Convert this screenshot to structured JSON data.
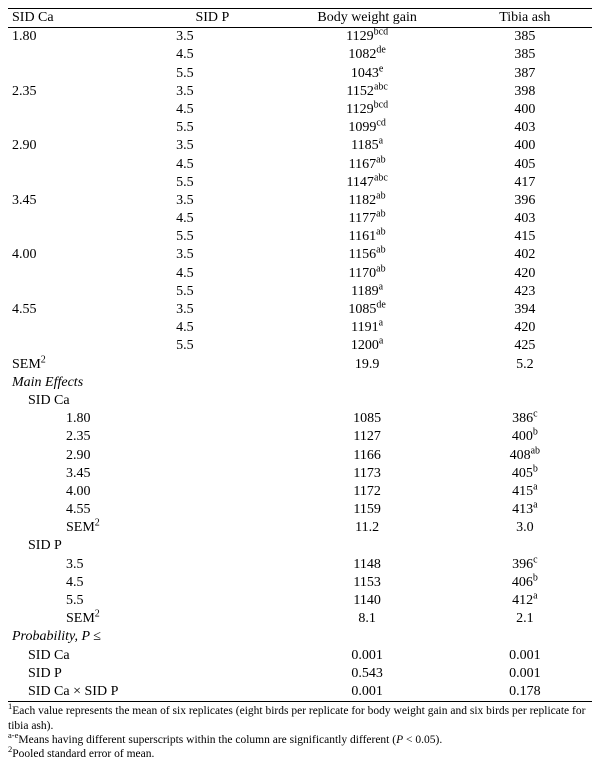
{
  "headers": {
    "sid_ca": "SID Ca",
    "sid_p": "SID P",
    "bwg": "Body weight gain",
    "tibia": "Tibia ash"
  },
  "interaction": [
    {
      "ca": "1.80",
      "rows": [
        {
          "p": "3.5",
          "bwg": "1129",
          "bwg_sup": "bcd",
          "tib": "385"
        },
        {
          "p": "4.5",
          "bwg": "1082",
          "bwg_sup": "de",
          "tib": "385"
        },
        {
          "p": "5.5",
          "bwg": "1043",
          "bwg_sup": "e",
          "tib": "387"
        }
      ]
    },
    {
      "ca": "2.35",
      "rows": [
        {
          "p": "3.5",
          "bwg": "1152",
          "bwg_sup": "abc",
          "tib": "398"
        },
        {
          "p": "4.5",
          "bwg": "1129",
          "bwg_sup": "bcd",
          "tib": "400"
        },
        {
          "p": "5.5",
          "bwg": "1099",
          "bwg_sup": "cd",
          "tib": "403"
        }
      ]
    },
    {
      "ca": "2.90",
      "rows": [
        {
          "p": "3.5",
          "bwg": "1185",
          "bwg_sup": "a",
          "tib": "400"
        },
        {
          "p": "4.5",
          "bwg": "1167",
          "bwg_sup": "ab",
          "tib": "405"
        },
        {
          "p": "5.5",
          "bwg": "1147",
          "bwg_sup": "abc",
          "tib": "417"
        }
      ]
    },
    {
      "ca": "3.45",
      "rows": [
        {
          "p": "3.5",
          "bwg": "1182",
          "bwg_sup": "ab",
          "tib": "396"
        },
        {
          "p": "4.5",
          "bwg": "1177",
          "bwg_sup": "ab",
          "tib": "403"
        },
        {
          "p": "5.5",
          "bwg": "1161",
          "bwg_sup": "ab",
          "tib": "415"
        }
      ]
    },
    {
      "ca": "4.00",
      "rows": [
        {
          "p": "3.5",
          "bwg": "1156",
          "bwg_sup": "ab",
          "tib": "402"
        },
        {
          "p": "4.5",
          "bwg": "1170",
          "bwg_sup": "ab",
          "tib": "420"
        },
        {
          "p": "5.5",
          "bwg": "1189",
          "bwg_sup": "a",
          "tib": "423"
        }
      ]
    },
    {
      "ca": "4.55",
      "rows": [
        {
          "p": "3.5",
          "bwg": "1085",
          "bwg_sup": "de",
          "tib": "394"
        },
        {
          "p": "4.5",
          "bwg": "1191",
          "bwg_sup": "a",
          "tib": "420"
        },
        {
          "p": "5.5",
          "bwg": "1200",
          "bwg_sup": "a",
          "tib": "425"
        }
      ]
    }
  ],
  "sem_interaction": {
    "label": "SEM",
    "label_sup": "2",
    "bwg": "19.9",
    "tib": "5.2"
  },
  "main_effects_label": "Main Effects",
  "main_ca": {
    "label": "SID Ca",
    "rows": [
      {
        "lvl": "1.80",
        "bwg": "1085",
        "tib": "386",
        "tib_sup": "c"
      },
      {
        "lvl": "2.35",
        "bwg": "1127",
        "tib": "400",
        "tib_sup": "b"
      },
      {
        "lvl": "2.90",
        "bwg": "1166",
        "tib": "408",
        "tib_sup": "ab"
      },
      {
        "lvl": "3.45",
        "bwg": "1173",
        "tib": "405",
        "tib_sup": "b"
      },
      {
        "lvl": "4.00",
        "bwg": "1172",
        "tib": "415",
        "tib_sup": "a"
      },
      {
        "lvl": "4.55",
        "bwg": "1159",
        "tib": "413",
        "tib_sup": "a"
      }
    ],
    "sem": {
      "label": "SEM",
      "label_sup": "2",
      "bwg": "11.2",
      "tib": "3.0"
    }
  },
  "main_p": {
    "label": "SID P",
    "rows": [
      {
        "lvl": "3.5",
        "bwg": "1148",
        "tib": "396",
        "tib_sup": "c"
      },
      {
        "lvl": "4.5",
        "bwg": "1153",
        "tib": "406",
        "tib_sup": "b"
      },
      {
        "lvl": "5.5",
        "bwg": "1140",
        "tib": "412",
        "tib_sup": "a"
      }
    ],
    "sem": {
      "label": "SEM",
      "label_sup": "2",
      "bwg": "8.1",
      "tib": "2.1"
    }
  },
  "prob": {
    "label": "Probability, P ≤",
    "rows": [
      {
        "name": "SID Ca",
        "bwg": "0.001",
        "tib": "0.001"
      },
      {
        "name": "SID P",
        "bwg": "0.543",
        "tib": "0.001"
      },
      {
        "name": "SID Ca × SID P",
        "bwg": "0.001",
        "tib": "0.178"
      }
    ]
  },
  "footnotes": {
    "f1_sup": "1",
    "f1": "Each value represents the mean of six replicates (eight birds per replicate for body weight gain and six birds per replicate for tibia ash).",
    "f2_sup": "a-e",
    "f2": "Means having different superscripts within the column are significantly different (",
    "f2_it": "P",
    "f2_end": " < 0.05).",
    "f3_sup": "2",
    "f3": "Pooled standard error of mean."
  }
}
